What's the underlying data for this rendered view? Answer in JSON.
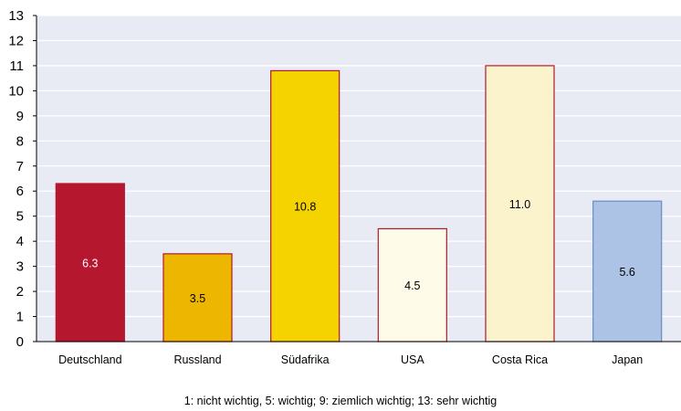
{
  "chart_data": {
    "type": "bar",
    "categories": [
      "Deutschland",
      "Russland",
      "Südafrika",
      "USA",
      "Costa Rica",
      "Japan"
    ],
    "values": [
      6.3,
      3.5,
      10.8,
      4.5,
      11.0,
      5.6
    ],
    "value_labels": [
      "6.3",
      "3.5",
      "10.8",
      "4.5",
      "11.0",
      "5.6"
    ],
    "bar_colors": [
      "#b5172e",
      "#edb600",
      "#f4d300",
      "#fefbe9",
      "#fbf3cc",
      "#adc3e5"
    ],
    "bar_border_colors": [
      "#b5172e",
      "#b5172e",
      "#b5172e",
      "#b5172e",
      "#b5172e",
      "#6b8cc4"
    ],
    "label_colors": [
      "#ffffff",
      "#000000",
      "#000000",
      "#000000",
      "#000000",
      "#000000"
    ],
    "ylim": [
      0,
      13
    ],
    "yticks": [
      0,
      1,
      2,
      3,
      4,
      5,
      6,
      7,
      8,
      9,
      10,
      11,
      12,
      13
    ],
    "grid": true,
    "plot_background": "#e8eaf4",
    "gridline_color": "#ffffff",
    "footnote": "1: nicht wichtig,   5: wichtig;   9: ziemlich wichtig;   13: sehr wichtig"
  }
}
